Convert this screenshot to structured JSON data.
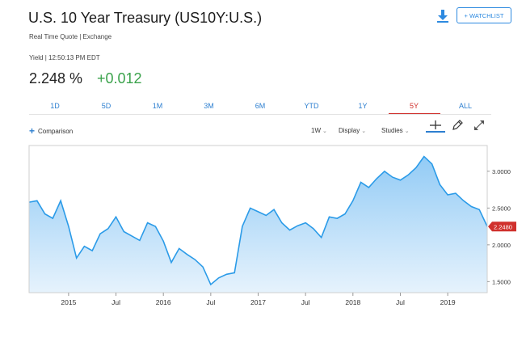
{
  "header": {
    "title": "U.S. 10 Year Treasury (US10Y:U.S.)",
    "subtitle": "Real Time Quote | Exchange",
    "watchlist_label": "+ WATCHLIST"
  },
  "quote": {
    "meta": "Yield | 12:50:13 PM EDT",
    "value": "2.248 %",
    "change": "+0.012"
  },
  "tabs": [
    {
      "label": "1D"
    },
    {
      "label": "5D"
    },
    {
      "label": "1M"
    },
    {
      "label": "3M"
    },
    {
      "label": "6M"
    },
    {
      "label": "YTD"
    },
    {
      "label": "1Y"
    },
    {
      "label": "5Y"
    },
    {
      "label": "ALL"
    }
  ],
  "active_tab": "5Y",
  "toolbar": {
    "comparison_label": "Comparison",
    "interval_label": "1W",
    "display_label": "Display",
    "studies_label": "Studies"
  },
  "colors": {
    "accent": "#2d7fd0",
    "active_tab": "#d0312d",
    "positive": "#3aa24b",
    "line": "#2b9be8",
    "price_tag": "#d0312d"
  },
  "icons": {
    "download": "download-icon",
    "crosshair": "crosshair-icon",
    "draw": "pencil-icon",
    "expand": "expand-icon",
    "caret": "chevron-down-icon"
  },
  "chart_data": {
    "type": "area",
    "x_tick_labels": [
      "2015",
      "Jul",
      "2016",
      "Jul",
      "2017",
      "Jul",
      "2018",
      "Jul",
      "2019"
    ],
    "y_tick_labels": [
      "3.0000",
      "2.5000",
      "2.0000",
      "1.5000"
    ],
    "ylim": [
      1.35,
      3.35
    ],
    "current_value_label": "2.2480",
    "x": [
      "2014-08",
      "2014-09",
      "2014-10",
      "2014-11",
      "2014-12",
      "2015-01",
      "2015-02",
      "2015-03",
      "2015-04",
      "2015-05",
      "2015-06",
      "2015-07",
      "2015-08",
      "2015-09",
      "2015-10",
      "2015-11",
      "2015-12",
      "2016-01",
      "2016-02",
      "2016-03",
      "2016-04",
      "2016-05",
      "2016-06",
      "2016-07",
      "2016-08",
      "2016-09",
      "2016-10",
      "2016-11",
      "2016-12",
      "2017-01",
      "2017-02",
      "2017-03",
      "2017-04",
      "2017-05",
      "2017-06",
      "2017-07",
      "2017-08",
      "2017-09",
      "2017-10",
      "2017-11",
      "2017-12",
      "2018-01",
      "2018-02",
      "2018-03",
      "2018-04",
      "2018-05",
      "2018-06",
      "2018-07",
      "2018-08",
      "2018-09",
      "2018-10",
      "2018-11",
      "2018-12",
      "2019-01",
      "2019-02",
      "2019-03",
      "2019-04",
      "2019-05",
      "2019-06"
    ],
    "series": [
      {
        "values": [
          2.58,
          2.6,
          2.42,
          2.36,
          2.6,
          2.25,
          1.82,
          1.98,
          1.92,
          2.15,
          2.22,
          2.38,
          2.18,
          2.12,
          2.06,
          2.3,
          2.25,
          2.05,
          1.76,
          1.95,
          1.87,
          1.8,
          1.7,
          1.46,
          1.55,
          1.6,
          1.62,
          2.25,
          2.5,
          2.45,
          2.4,
          2.48,
          2.3,
          2.2,
          2.26,
          2.3,
          2.22,
          2.1,
          2.38,
          2.36,
          2.42,
          2.6,
          2.85,
          2.78,
          2.9,
          3.0,
          2.92,
          2.88,
          2.95,
          3.05,
          3.2,
          3.1,
          2.82,
          2.68,
          2.7,
          2.6,
          2.52,
          2.48,
          2.25
        ]
      }
    ]
  }
}
